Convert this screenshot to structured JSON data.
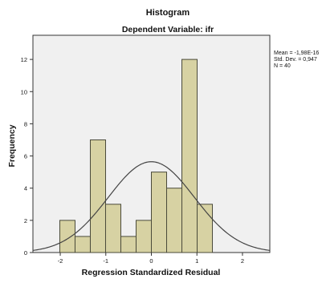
{
  "chart_data": {
    "type": "bar",
    "title": "Histogram",
    "subtitle": "Dependent Variable: ifr",
    "xlabel": "Regression Standardized Residual",
    "ylabel": "Frequency",
    "bin_width": 0.335,
    "bins": [
      {
        "start": -2.01,
        "value": 2
      },
      {
        "start": -1.675,
        "value": 1
      },
      {
        "start": -1.34,
        "value": 7
      },
      {
        "start": -1.005,
        "value": 3
      },
      {
        "start": -0.67,
        "value": 1
      },
      {
        "start": -0.335,
        "value": 2
      },
      {
        "start": 0.0,
        "value": 5
      },
      {
        "start": 0.335,
        "value": 4
      },
      {
        "start": 0.67,
        "value": 12
      },
      {
        "start": 1.005,
        "value": 3
      }
    ],
    "xlim": [
      -2.6,
      2.6
    ],
    "ylim": [
      0,
      13.5
    ],
    "x_ticks": [
      "-2",
      "-1",
      "0",
      "1",
      "2"
    ],
    "x_tick_values": [
      -2,
      -1,
      0,
      1,
      2
    ],
    "y_ticks": [
      "0",
      "2",
      "4",
      "6",
      "8",
      "10",
      "12"
    ],
    "y_tick_values": [
      0,
      2,
      4,
      6,
      8,
      10,
      12
    ],
    "grid": false,
    "normal_curve": {
      "mean": 0,
      "sd": 0.947,
      "n": 40
    },
    "legend_placement": "top-right",
    "stats": [
      "Mean = -1,98E-16",
      "Std. Dev. = 0,947",
      "N = 40"
    ],
    "colors": {
      "bar_fill": "#d7d2a3",
      "bar_stroke": "#4a4a3a",
      "plot_bg": "#f0f0f0",
      "curve": "#444444"
    }
  }
}
